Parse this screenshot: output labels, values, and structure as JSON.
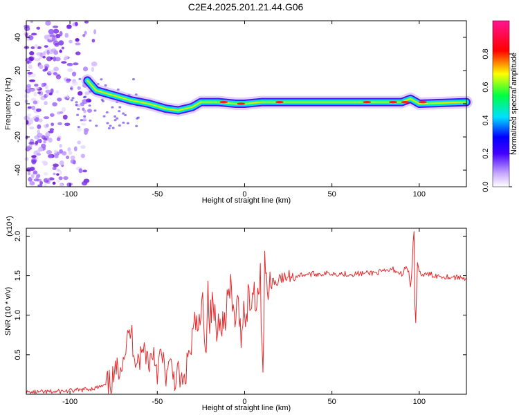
{
  "title": "C2E4.2025.201.21.44.G06",
  "chart_data": [
    {
      "type": "heatmap",
      "xlabel": "Height of straight line (km)",
      "ylabel": "Frequency (Hz)",
      "xlim": [
        -125,
        127
      ],
      "ylim": [
        -50,
        50
      ],
      "x_ticks": [
        -100,
        -50,
        0,
        50,
        100
      ],
      "y_ticks": [
        -40,
        -20,
        0,
        20,
        40
      ],
      "colorbar": {
        "label": "Normalized spectral amplitude",
        "range": [
          0,
          1
        ],
        "ticks": [
          "0.0",
          "0.2",
          "0.4",
          "0.6",
          "0.8"
        ],
        "colors": [
          "#ffffff",
          "#a070ff",
          "#0000ff",
          "#00e0ff",
          "#00ff40",
          "#ffff00",
          "#ff0000",
          "#ff1493"
        ]
      },
      "ridge": [
        {
          "x": -90,
          "y": 14
        },
        {
          "x": -85,
          "y": 8
        },
        {
          "x": -75,
          "y": 5
        },
        {
          "x": -65,
          "y": 2
        },
        {
          "x": -55,
          "y": 0
        },
        {
          "x": -45,
          "y": -3
        },
        {
          "x": -38,
          "y": -4
        },
        {
          "x": -30,
          "y": -2
        },
        {
          "x": -25,
          "y": 1
        },
        {
          "x": -15,
          "y": 1
        },
        {
          "x": -5,
          "y": 0
        },
        {
          "x": 0,
          "y": 0
        },
        {
          "x": 10,
          "y": 1
        },
        {
          "x": 30,
          "y": 1
        },
        {
          "x": 60,
          "y": 1
        },
        {
          "x": 90,
          "y": 1
        },
        {
          "x": 95,
          "y": 3
        },
        {
          "x": 100,
          "y": 0
        },
        {
          "x": 127,
          "y": 1
        }
      ]
    },
    {
      "type": "line",
      "xlabel": "Height of straight line (km)",
      "ylabel": "SNR (10 * v/v)",
      "scale_label": "(x10⁴)",
      "xlim": [
        -125,
        127
      ],
      "ylim": [
        0,
        2.1
      ],
      "x_ticks": [
        -100,
        -50,
        0,
        50,
        100
      ],
      "y_ticks": [
        "0.5",
        "1.0",
        "1.5",
        "2.0"
      ],
      "series": [
        {
          "color": "#e8282a",
          "x": [
            -125,
            -110,
            -95,
            -85,
            -78,
            -75,
            -72,
            -70,
            -68,
            -66,
            -65,
            -63,
            -60,
            -57,
            -55,
            -52,
            -50,
            -48,
            -45,
            -42,
            -40,
            -38,
            -35,
            -33,
            -32,
            -31,
            -30,
            -28,
            -26,
            -24,
            -22,
            -21,
            -20,
            -18,
            -16,
            -14,
            -12,
            -10,
            -8,
            -6,
            -4,
            -2,
            0,
            1,
            2,
            3,
            5,
            7,
            9,
            10,
            10.5,
            11,
            11.5,
            12,
            14,
            16,
            18,
            20,
            22,
            25,
            28,
            30,
            35,
            40,
            50,
            60,
            70,
            80,
            85,
            90,
            92,
            94,
            95,
            96,
            96.5,
            97,
            97.5,
            98,
            99,
            100,
            102,
            105,
            110,
            120,
            127
          ],
          "y": [
            0.02,
            0.03,
            0.05,
            0.08,
            0.12,
            0.2,
            0.35,
            0.45,
            0.6,
            0.75,
            0.8,
            0.5,
            0.45,
            0.6,
            0.4,
            0.55,
            0.3,
            0.5,
            0.25,
            0.35,
            0.2,
            0.25,
            0.1,
            0.35,
            0.6,
            0.45,
            0.7,
            0.9,
            0.8,
            1.15,
            0.6,
            1.35,
            0.95,
            1.15,
            0.75,
            1.05,
            0.85,
            1.2,
            1.3,
            0.95,
            1.1,
            0.8,
            1.15,
            0.9,
            1.3,
            1.1,
            1.35,
            1.2,
            1.45,
            0.6,
            0.35,
            1.0,
            1.78,
            1.4,
            1.3,
            1.45,
            1.4,
            1.5,
            1.45,
            1.5,
            1.48,
            1.5,
            1.52,
            1.52,
            1.53,
            1.52,
            1.53,
            1.55,
            1.58,
            1.52,
            1.6,
            1.55,
            1.35,
            1.62,
            1.9,
            2.05,
            1.1,
            0.9,
            1.7,
            1.55,
            1.5,
            1.52,
            1.5,
            1.48,
            1.47
          ]
        }
      ]
    }
  ]
}
